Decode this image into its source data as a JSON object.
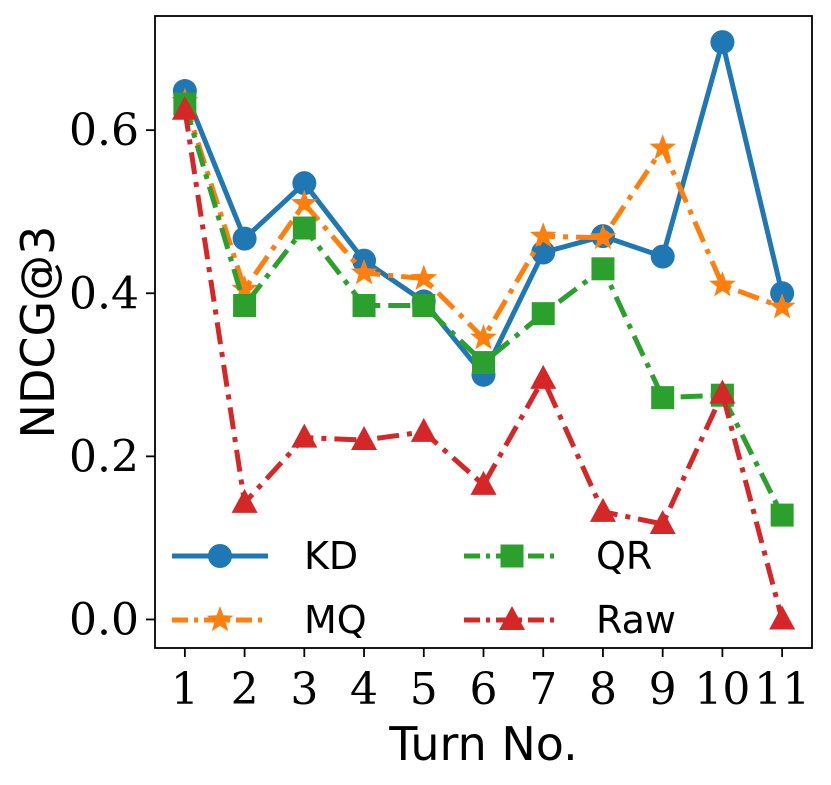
{
  "chart_data": {
    "type": "line",
    "title": "",
    "xlabel": "Turn No.",
    "ylabel": "NDCG@3",
    "x": [
      1,
      2,
      3,
      4,
      5,
      6,
      7,
      8,
      9,
      10,
      11
    ],
    "xtick_labels": [
      "1",
      "2",
      "3",
      "4",
      "5",
      "6",
      "7",
      "8",
      "9",
      "10",
      "11"
    ],
    "xlim": [
      0.5,
      11.5
    ],
    "ylim": [
      -0.035,
      0.74
    ],
    "yticks": [
      0.0,
      0.2,
      0.4,
      0.6
    ],
    "ytick_labels": [
      "0.0",
      "0.2",
      "0.4",
      "0.6"
    ],
    "grid": false,
    "legend": {
      "location": "lower-left",
      "columns": 2
    },
    "series": [
      {
        "name": "KD",
        "color": "#1f77b4",
        "marker": "circle",
        "linestyle": "solid",
        "values": [
          0.648,
          0.467,
          0.535,
          0.44,
          0.39,
          0.3,
          0.45,
          0.47,
          0.445,
          0.708,
          0.4
        ]
      },
      {
        "name": "MQ",
        "color": "#ff7f0e",
        "marker": "star",
        "linestyle": "dashdot",
        "values": [
          0.635,
          0.405,
          0.51,
          0.425,
          0.418,
          0.345,
          0.47,
          0.468,
          0.578,
          0.41,
          0.383
        ]
      },
      {
        "name": "QR",
        "color": "#2ca02c",
        "marker": "square",
        "linestyle": "dashdot",
        "values": [
          0.632,
          0.385,
          0.48,
          0.385,
          0.385,
          0.315,
          0.375,
          0.43,
          0.272,
          0.275,
          0.128
        ]
      },
      {
        "name": "Raw",
        "color": "#d62728",
        "marker": "triangle",
        "linestyle": "dashdot",
        "values": [
          0.625,
          0.143,
          0.223,
          0.22,
          0.23,
          0.165,
          0.295,
          0.132,
          0.117,
          0.277,
          0.0
        ]
      }
    ]
  }
}
